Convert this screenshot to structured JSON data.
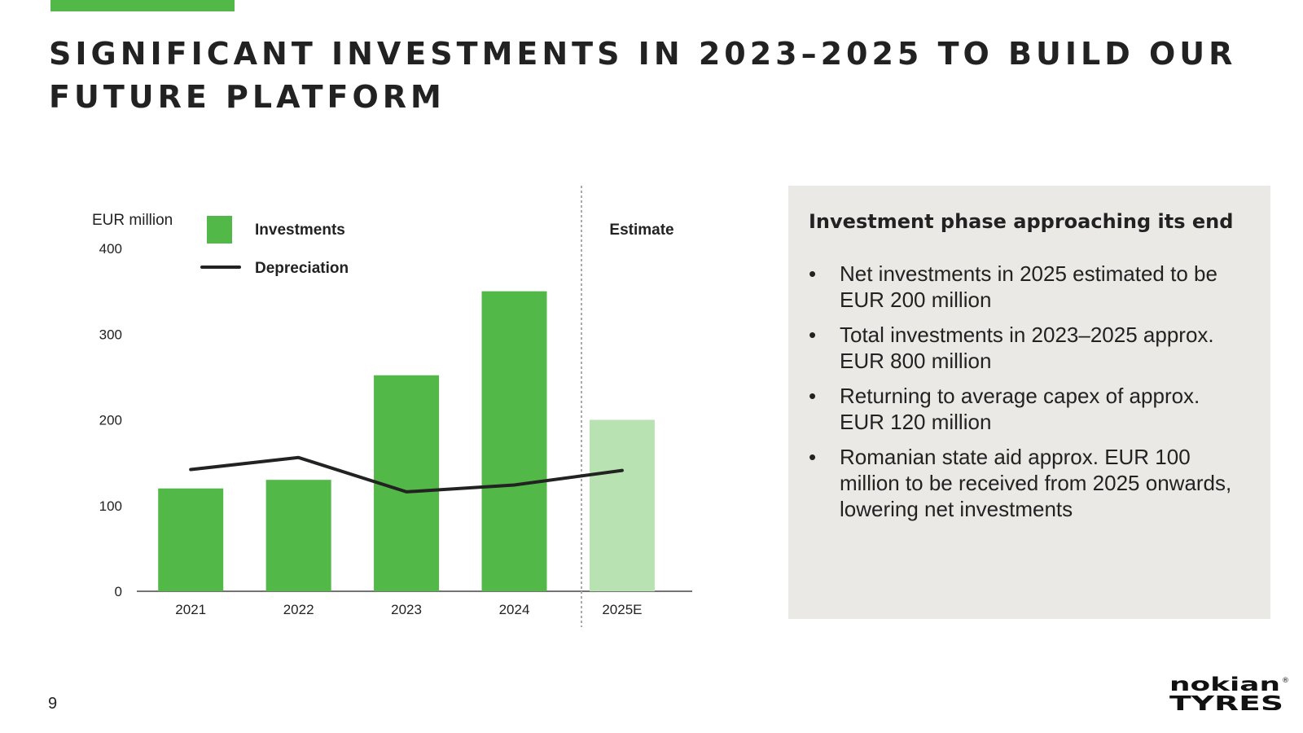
{
  "header": {
    "title": "SIGNIFICANT INVESTMENTS IN 2023–2025 TO BUILD OUR FUTURE PLATFORM",
    "accent_color": "#52b848"
  },
  "chart_data": {
    "type": "bar",
    "categories": [
      "2021",
      "2022",
      "2023",
      "2024",
      "2025E"
    ],
    "ylabel": "EUR million",
    "ylim": [
      0,
      400
    ],
    "yticks": [
      0,
      100,
      200,
      300,
      400
    ],
    "series": [
      {
        "name": "Investments",
        "type": "bar",
        "values": [
          120,
          130,
          252,
          350,
          200
        ],
        "color": "#52b848",
        "estimate_color": "#b9e2b2"
      },
      {
        "name": "Depreciation",
        "type": "line",
        "values": [
          142,
          156,
          116,
          124,
          141
        ],
        "color": "#222222"
      }
    ],
    "estimate_label": "Estimate",
    "estimate_categories": [
      "2025E"
    ],
    "legend_position": "top-left",
    "grid": false
  },
  "info_box": {
    "heading": "Investment phase approaching its end",
    "bullet_symbol": "•",
    "bullets": [
      "Net investments in 2025 estimated to be EUR 200 million",
      "Total investments in 2023–2025 approx. EUR 800 million",
      "Returning to average capex of approx. EUR 120 million",
      "Romanian state aid approx. EUR 100 million to be received from 2025 onwards, lowering net investments"
    ]
  },
  "footer": {
    "page_number": "9",
    "logo_top": "nokian",
    "logo_bottom": "TYRES",
    "logo_mark": "®"
  }
}
